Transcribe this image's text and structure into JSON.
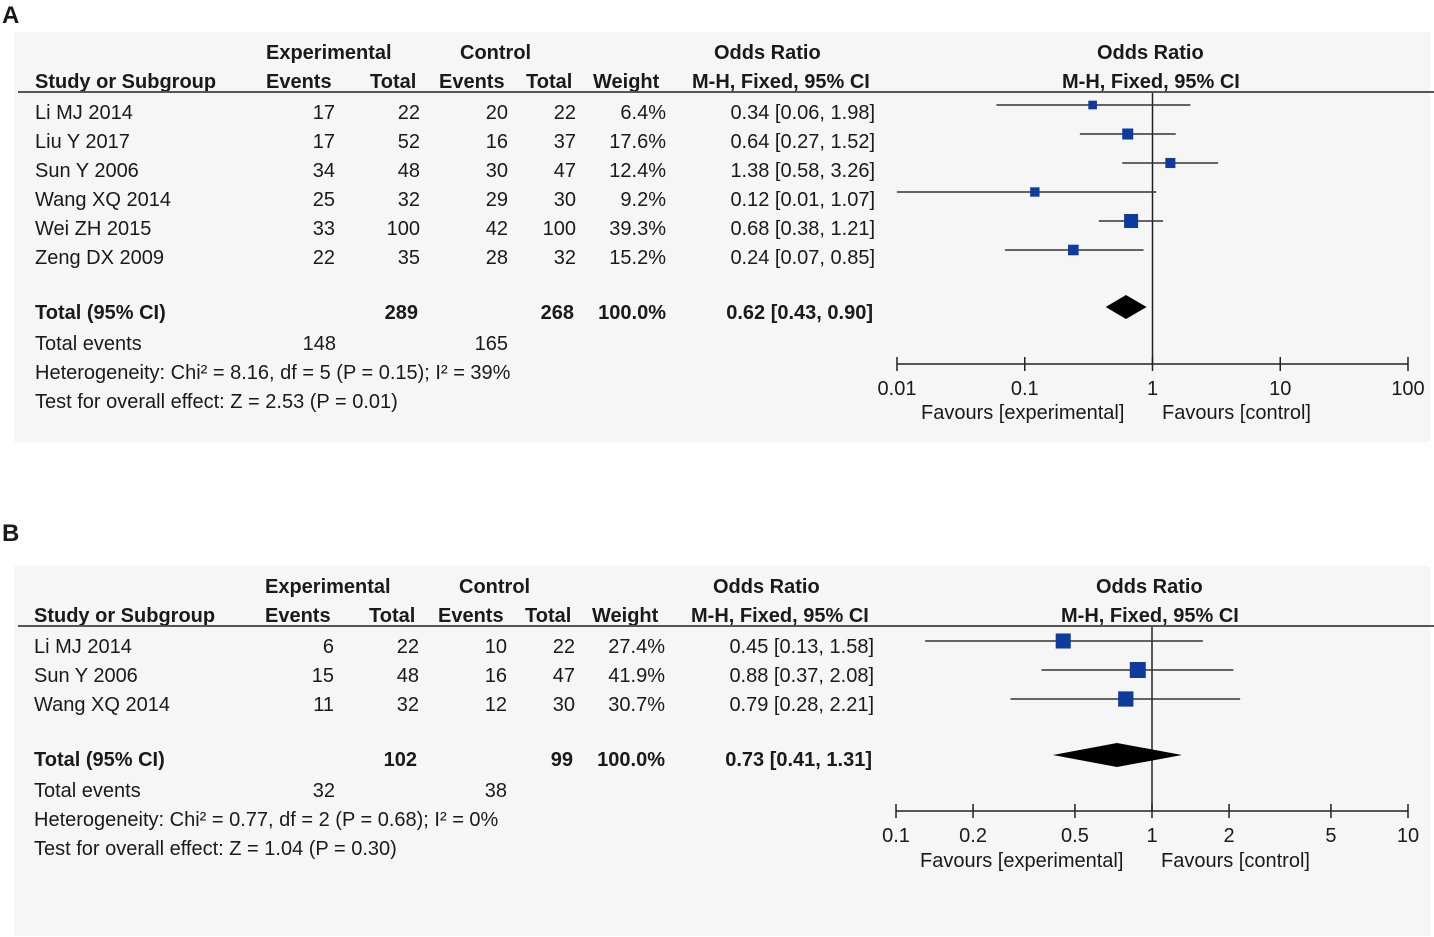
{
  "panels": [
    {
      "label": "A",
      "headers": {
        "group_left": "Experimental",
        "group_right": "Control",
        "or_top": "Odds Ratio",
        "or_top_plot": "Odds Ratio",
        "study": "Study or Subgroup",
        "events": "Events",
        "total": "Total",
        "events_c": "Events",
        "total_c": "Total",
        "weight": "Weight",
        "method": "M-H, Fixed, 95% CI",
        "method_plot": "M-H, Fixed, 95% CI"
      },
      "rows": [
        {
          "study": "Li MJ 2014",
          "e_events": "17",
          "e_total": "22",
          "c_events": "20",
          "c_total": "22",
          "weight": "6.4%",
          "or_text": "0.34 [0.06, 1.98]"
        },
        {
          "study": "Liu Y 2017",
          "e_events": "17",
          "e_total": "52",
          "c_events": "16",
          "c_total": "37",
          "weight": "17.6%",
          "or_text": "0.64 [0.27, 1.52]"
        },
        {
          "study": "Sun Y 2006",
          "e_events": "34",
          "e_total": "48",
          "c_events": "30",
          "c_total": "47",
          "weight": "12.4%",
          "or_text": "1.38 [0.58, 3.26]"
        },
        {
          "study": "Wang XQ 2014",
          "e_events": "25",
          "e_total": "32",
          "c_events": "29",
          "c_total": "30",
          "weight": "9.2%",
          "or_text": "0.12 [0.01, 1.07]"
        },
        {
          "study": "Wei ZH 2015",
          "e_events": "33",
          "e_total": "100",
          "c_events": "42",
          "c_total": "100",
          "weight": "39.3%",
          "or_text": "0.68 [0.38, 1.21]"
        },
        {
          "study": "Zeng DX 2009",
          "e_events": "22",
          "e_total": "35",
          "c_events": "28",
          "c_total": "32",
          "weight": "15.2%",
          "or_text": "0.24 [0.07, 0.85]"
        }
      ],
      "total": {
        "label": "Total (95% CI)",
        "e_total": "289",
        "c_total": "268",
        "weight": "100.0%",
        "or_text": "0.62 [0.43, 0.90]"
      },
      "total_events": {
        "label": "Total events",
        "e_events": "148",
        "c_events": "165"
      },
      "heterogeneity": "Heterogeneity: Chi² = 8.16, df = 5 (P = 0.15); I² = 39%",
      "overall_effect": "Test for overall effect: Z = 2.53 (P = 0.01)",
      "favours_left": "Favours [experimental]",
      "favours_right": "Favours [control]"
    },
    {
      "label": "B",
      "headers": {
        "group_left": "Experimental",
        "group_right": "Control",
        "or_top": "Odds Ratio",
        "or_top_plot": "Odds Ratio",
        "study": "Study or Subgroup",
        "events": "Events",
        "total": "Total",
        "events_c": "Events",
        "total_c": "Total",
        "weight": "Weight",
        "method": "M-H, Fixed, 95% CI",
        "method_plot": "M-H, Fixed, 95% CI"
      },
      "rows": [
        {
          "study": "Li MJ 2014",
          "e_events": "6",
          "e_total": "22",
          "c_events": "10",
          "c_total": "22",
          "weight": "27.4%",
          "or_text": "0.45 [0.13, 1.58]"
        },
        {
          "study": "Sun Y 2006",
          "e_events": "15",
          "e_total": "48",
          "c_events": "16",
          "c_total": "47",
          "weight": "41.9%",
          "or_text": "0.88 [0.37, 2.08]"
        },
        {
          "study": "Wang XQ 2014",
          "e_events": "11",
          "e_total": "32",
          "c_events": "12",
          "c_total": "30",
          "weight": "30.7%",
          "or_text": "0.79 [0.28, 2.21]"
        }
      ],
      "total": {
        "label": "Total (95% CI)",
        "e_total": "102",
        "c_total": "99",
        "weight": "100.0%",
        "or_text": "0.73 [0.41, 1.31]"
      },
      "total_events": {
        "label": "Total events",
        "e_events": "32",
        "c_events": "38"
      },
      "heterogeneity": "Heterogeneity: Chi² = 0.77, df = 2 (P = 0.68); I² = 0%",
      "overall_effect": "Test for overall effect: Z = 1.04 (P = 0.30)",
      "favours_left": "Favours [experimental]",
      "favours_right": "Favours [control]"
    }
  ],
  "chart_data": [
    {
      "type": "forest",
      "title": "A",
      "scale": "log",
      "xlim": [
        0.01,
        100
      ],
      "ticks": [
        0.01,
        0.1,
        1,
        10,
        100
      ],
      "tick_labels": [
        "0.01",
        "0.1",
        "1",
        "10",
        "100"
      ],
      "studies": [
        {
          "name": "Li MJ 2014",
          "or": 0.34,
          "lo": 0.06,
          "hi": 1.98,
          "weight": 6.4
        },
        {
          "name": "Liu Y 2017",
          "or": 0.64,
          "lo": 0.27,
          "hi": 1.52,
          "weight": 17.6
        },
        {
          "name": "Sun Y 2006",
          "or": 1.38,
          "lo": 0.58,
          "hi": 3.26,
          "weight": 12.4
        },
        {
          "name": "Wang XQ 2014",
          "or": 0.12,
          "lo": 0.01,
          "hi": 1.07,
          "weight": 9.2
        },
        {
          "name": "Wei ZH 2015",
          "or": 0.68,
          "lo": 0.38,
          "hi": 1.21,
          "weight": 39.3
        },
        {
          "name": "Zeng DX 2009",
          "or": 0.24,
          "lo": 0.07,
          "hi": 0.85,
          "weight": 15.2
        }
      ],
      "pooled": {
        "or": 0.62,
        "lo": 0.43,
        "hi": 0.9
      },
      "marker_color": "#0d3b9e"
    },
    {
      "type": "forest",
      "title": "B",
      "scale": "log",
      "xlim": [
        0.1,
        10
      ],
      "ticks": [
        0.1,
        0.2,
        0.5,
        1,
        2,
        5,
        10
      ],
      "tick_labels": [
        "0.1",
        "0.2",
        "0.5",
        "1",
        "2",
        "5",
        "10"
      ],
      "studies": [
        {
          "name": "Li MJ 2014",
          "or": 0.45,
          "lo": 0.13,
          "hi": 1.58,
          "weight": 27.4
        },
        {
          "name": "Sun Y 2006",
          "or": 0.88,
          "lo": 0.37,
          "hi": 2.08,
          "weight": 41.9
        },
        {
          "name": "Wang XQ 2014",
          "or": 0.79,
          "lo": 0.28,
          "hi": 2.21,
          "weight": 30.7
        }
      ],
      "pooled": {
        "or": 0.73,
        "lo": 0.41,
        "hi": 1.31
      },
      "marker_color": "#0d3b9e"
    }
  ]
}
